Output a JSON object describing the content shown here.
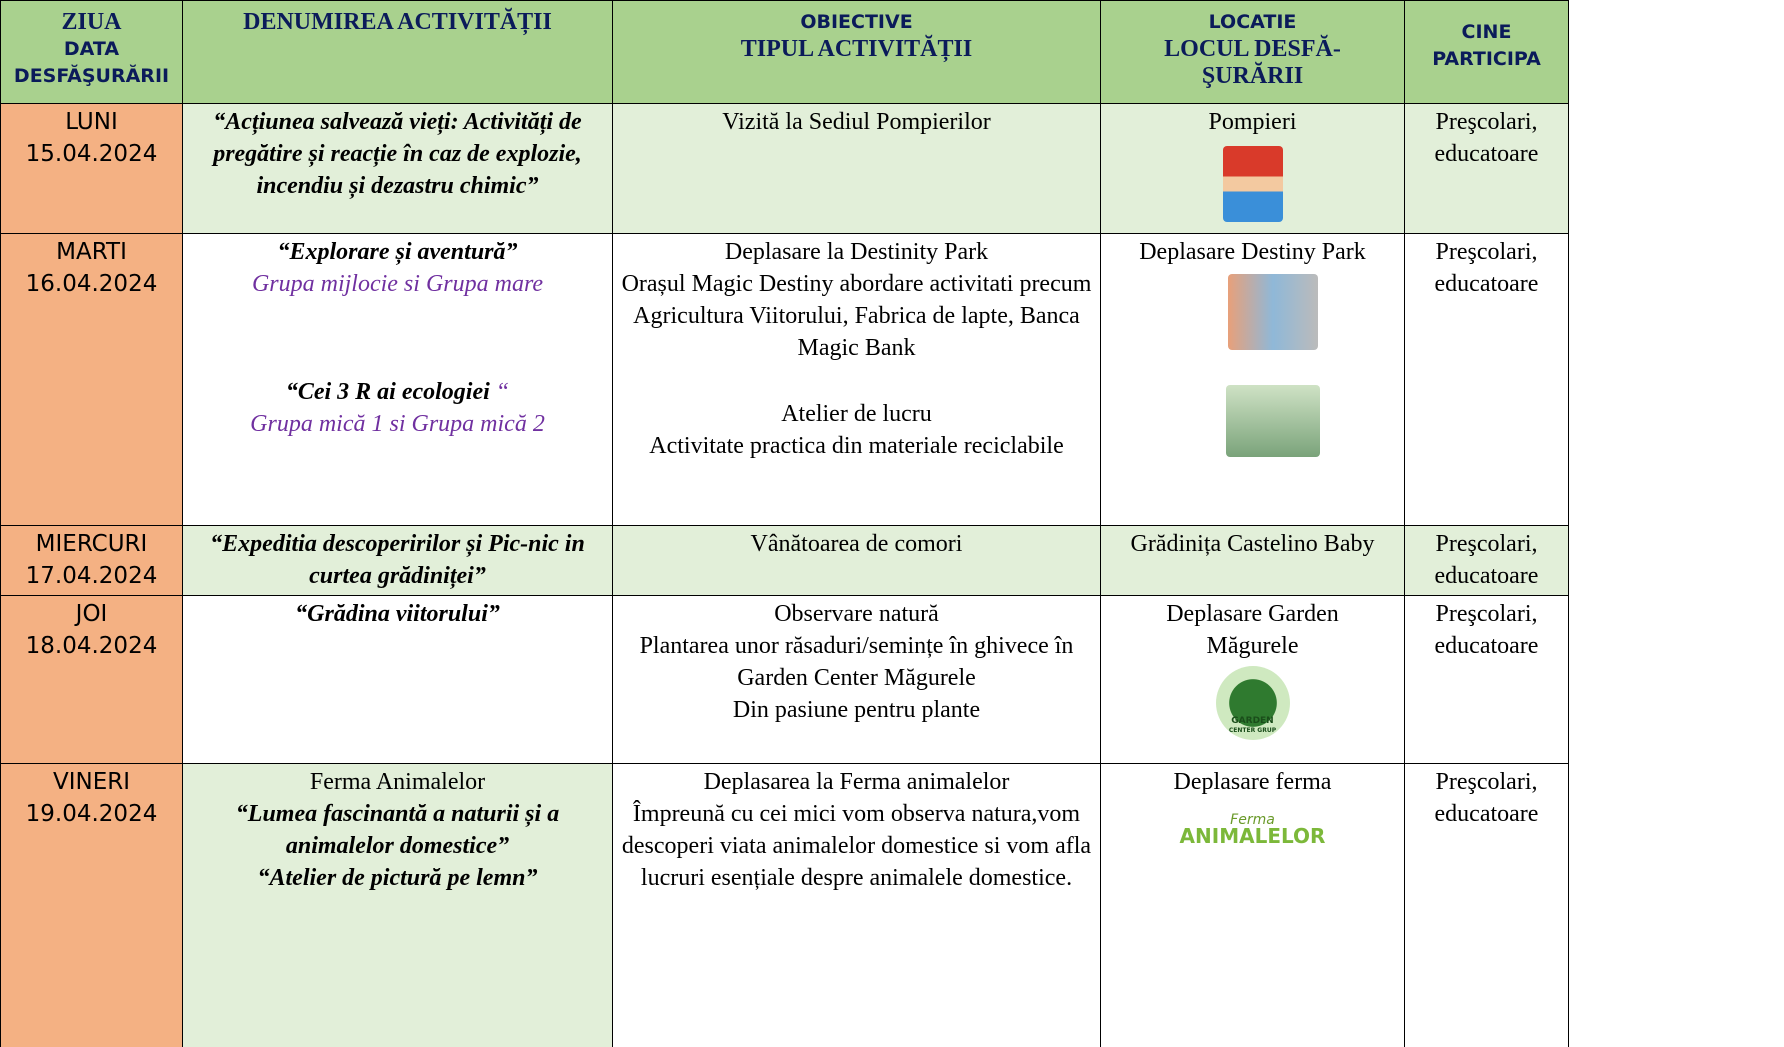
{
  "table": {
    "header": {
      "day": [
        "ZIUA",
        "DATA",
        "DESFĂŞURĂRII"
      ],
      "activity": [
        "DENUMIREA ACTIVITĂȚII"
      ],
      "objectives": [
        "OBIECTIVE",
        "TIPUL ACTIVITĂȚII"
      ],
      "location": [
        "LOCATIE",
        "LOCUL DESFĂ-ŞURĂRII"
      ],
      "participants": [
        "CINE",
        "PARTICIPA"
      ]
    },
    "rows": [
      {
        "day": [
          "LUNI",
          "15.04.2024"
        ],
        "activity": [
          "“Acțiunea salvează vieți: Activități de pregătire și reacție în caz de explozie, incendiu și dezastru chimic”"
        ],
        "objectives": [
          "Vizită la Sediul Pompierilor"
        ],
        "location": [
          "Pompieri"
        ],
        "participants": "Preşcolari, educatoare"
      },
      {
        "day": [
          "MARTI",
          "16.04.2024"
        ],
        "activity": [
          "“Explorare și aventură”",
          "Grupa mijlocie si Grupa mare",
          "“Cei 3 R ai ecologiei",
          "“",
          "Grupa mică 1 si Grupa mică 2"
        ],
        "objectives": [
          "Deplasare la Destinity Park",
          "Orașul Magic Destiny abordare activitati precum Agricultura Viitorului, Fabrica de lapte, Banca Magic Bank",
          "Atelier de lucru",
          "Activitate practica din materiale reciclabile"
        ],
        "location": [
          "Deplasare Destiny Park"
        ],
        "participants": "Preşcolari, educatoare"
      },
      {
        "day": [
          "MIERCURI",
          "17.04.2024"
        ],
        "activity": [
          "“Expeditia descoperirilor și Pic-nic in curtea grădiniței”"
        ],
        "objectives": [
          "Vânătoarea de comori"
        ],
        "location": [
          "Grădinița Castelino Baby"
        ],
        "participants": "Preşcolari, educatoare"
      },
      {
        "day": [
          "JOI",
          "18.04.2024"
        ],
        "activity": [
          "“Grădina viitorului”"
        ],
        "objectives": [
          "Observare natură",
          "Plantarea unor răsaduri/semințe în ghivece în Garden Center Măgurele",
          "Din pasiune pentru plante"
        ],
        "location": [
          "Deplasare Garden Măgurele",
          "GARDEN",
          "CENTER GRUP"
        ],
        "participants": "Preşcolari, educatoare"
      },
      {
        "day": [
          "VINERI",
          "19.04.2024"
        ],
        "activity": [
          "Ferma Animalelor",
          "“Lumea fascinantă a naturii și a animalelor domestice”",
          "“Atelier de pictură pe lemn”"
        ],
        "objectives": [
          "Deplasarea la Ferma animalelor",
          "Împreună cu cei mici vom observa natura,vom descoperi viata animalelor domestice si vom afla lucruri esențiale despre animalele domestice."
        ],
        "location": [
          "Deplasare ferma",
          "Ferma",
          "ANIMALELOR"
        ],
        "participants": "Preşcolari, educatoare"
      }
    ]
  }
}
